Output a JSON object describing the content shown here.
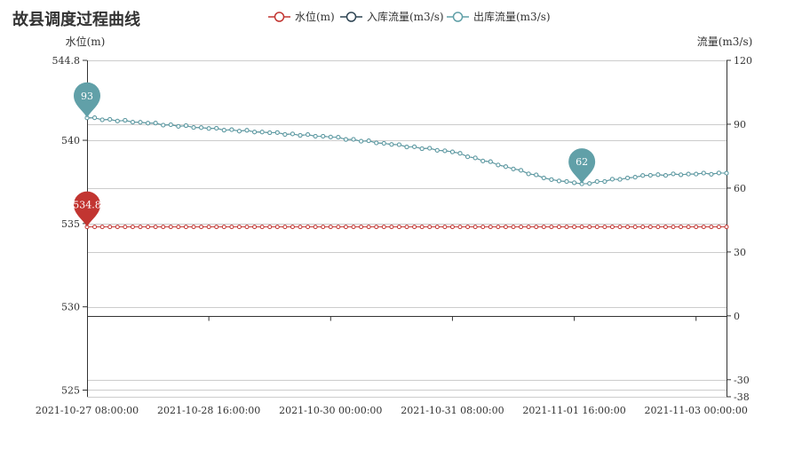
{
  "chart_data": {
    "type": "line",
    "title": "故县调度过程曲线",
    "y_left": {
      "label": "水位(m)",
      "min": 524.6,
      "max": 544.8,
      "ticks": [
        544.8,
        540,
        535,
        530,
        525
      ],
      "tick_labels": [
        "544.8",
        "540",
        "535",
        "530",
        "525"
      ]
    },
    "y_right": {
      "label": "流量(m3/s)",
      "min": -38,
      "max": 120,
      "ticks": [
        120,
        90,
        60,
        30,
        0,
        -30,
        -38
      ],
      "tick_labels": [
        "120",
        "90",
        "60",
        "30",
        "0",
        "-30",
        "-38"
      ]
    },
    "x_axis": {
      "start": "2021-10-27 08:00:00",
      "end": "2021-11-03 08:00:00",
      "step_hours": 2,
      "tick_labels": [
        "2021-10-27 08:00:00",
        "2021-10-28 16:00:00",
        "2021-10-30 00:00:00",
        "2021-10-31 08:00:00",
        "2021-11-01 16:00:00",
        "2021-11-03 00:00:00"
      ]
    },
    "legend": {
      "position": "top-center",
      "items": [
        "水位(m)",
        "入库流量(m3/s)",
        "出库流量(m3/s)"
      ]
    },
    "series": [
      {
        "name": "水位(m)",
        "axis": "left",
        "color": "#c23531",
        "x_count": 85,
        "values_constant": 534.8,
        "markpoint": {
          "label": "534.8",
          "x": "2021-10-27 08:00:00",
          "value": 534.8
        }
      },
      {
        "name": "入库流量(m3/s)",
        "axis": "right",
        "color": "#2f4554",
        "values_same_as": "出库流量(m3/s)"
      },
      {
        "name": "出库流量(m3/s)",
        "axis": "right",
        "color": "#61a0a8",
        "keyframes": [
          {
            "x": "2021-10-27 08:00:00",
            "value": 93
          },
          {
            "x": "2021-10-28 16:00:00",
            "value": 88
          },
          {
            "x": "2021-10-30 00:00:00",
            "value": 84
          },
          {
            "x": "2021-10-31 08:00:00",
            "value": 77
          },
          {
            "x": "2021-11-01 10:00:00",
            "value": 64
          },
          {
            "x": "2021-11-01 18:00:00",
            "value": 62
          },
          {
            "x": "2021-11-02 12:00:00",
            "value": 66
          },
          {
            "x": "2021-11-03 08:00:00",
            "value": 67
          }
        ],
        "markpoint": {
          "label": "62",
          "x": "2021-11-01 18:00:00",
          "value": 62
        }
      }
    ],
    "grid": {
      "horizontal": true,
      "vertical": false
    }
  }
}
